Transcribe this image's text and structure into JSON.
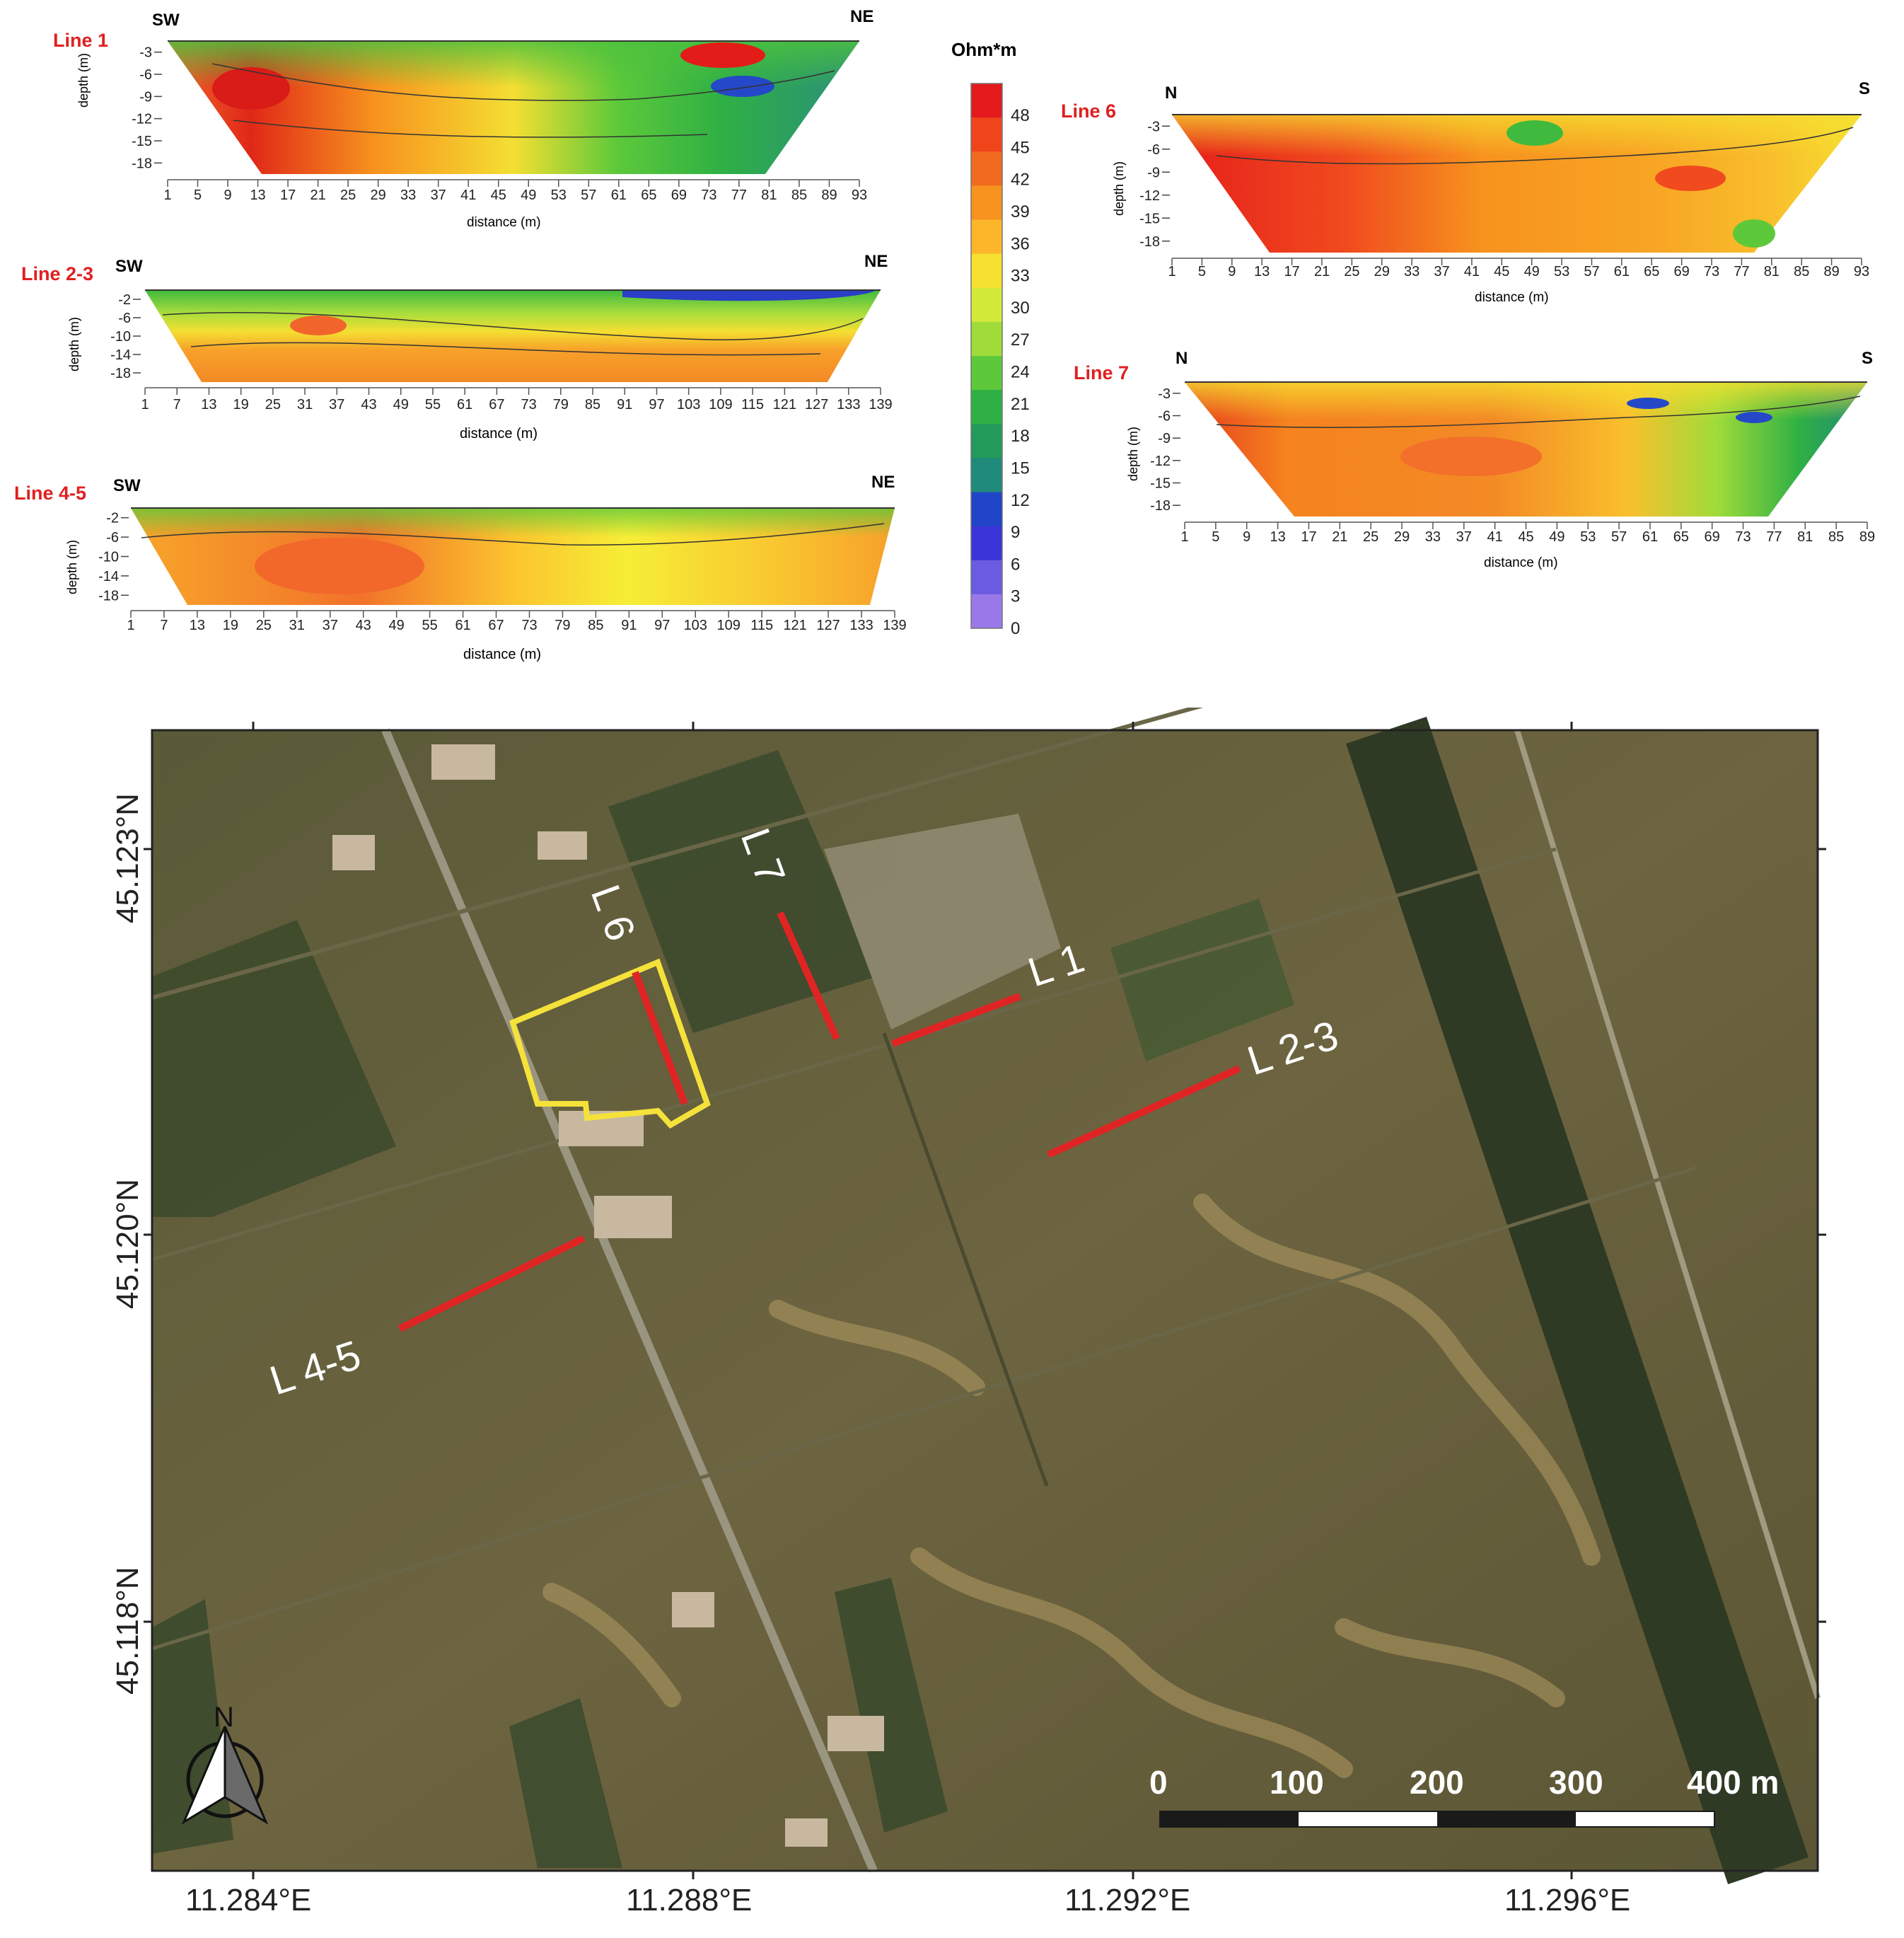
{
  "colorbar": {
    "unit_label": "Ohm*m",
    "ticks": [
      "48",
      "45",
      "42",
      "39",
      "36",
      "33",
      "30",
      "27",
      "24",
      "21",
      "18",
      "15",
      "12",
      "9",
      "6",
      "3",
      "0"
    ],
    "colors": [
      "#e41a1c",
      "#f0441a",
      "#f26a1f",
      "#f7931e",
      "#fdb62a",
      "#f6e030",
      "#d4ea3a",
      "#9fdc3a",
      "#5dc93a",
      "#2fb044",
      "#229a5a",
      "#1f8a7a",
      "#2045c8",
      "#3a35d8",
      "#6b5be0",
      "#9a78ea"
    ]
  },
  "profiles": [
    {
      "id": "line1",
      "title": "Line 1",
      "left_dir": "SW",
      "right_dir": "NE",
      "ylabel": "depth (m)",
      "xlabel": "distance (m)",
      "yticks": [
        "-3",
        "-6",
        "-9",
        "-12",
        "-15",
        "-18"
      ],
      "xticks": [
        "1",
        "5",
        "9",
        "13",
        "17",
        "21",
        "25",
        "29",
        "33",
        "37",
        "41",
        "45",
        "49",
        "53",
        "57",
        "61",
        "65",
        "69",
        "73",
        "77",
        "81",
        "85",
        "89",
        "93"
      ]
    },
    {
      "id": "line23",
      "title": "Line 2-3",
      "left_dir": "SW",
      "right_dir": "NE",
      "ylabel": "depth (m)",
      "xlabel": "distance (m)",
      "yticks": [
        "-2",
        "-6",
        "-10",
        "-14",
        "-18"
      ],
      "xticks": [
        "1",
        "7",
        "13",
        "19",
        "25",
        "31",
        "37",
        "43",
        "49",
        "55",
        "61",
        "67",
        "73",
        "79",
        "85",
        "91",
        "97",
        "103",
        "109",
        "115",
        "121",
        "127",
        "133",
        "139"
      ]
    },
    {
      "id": "line45",
      "title": "Line 4-5",
      "left_dir": "SW",
      "right_dir": "NE",
      "ylabel": "depth (m)",
      "xlabel": "distance (m)",
      "yticks": [
        "-2",
        "-6",
        "-10",
        "-14",
        "-18"
      ],
      "xticks": [
        "1",
        "7",
        "13",
        "19",
        "25",
        "31",
        "37",
        "43",
        "49",
        "55",
        "61",
        "67",
        "73",
        "79",
        "85",
        "91",
        "97",
        "103",
        "109",
        "115",
        "121",
        "127",
        "133",
        "139"
      ]
    },
    {
      "id": "line6",
      "title": "Line 6",
      "left_dir": "N",
      "right_dir": "S",
      "ylabel": "depth (m)",
      "xlabel": "distance (m)",
      "yticks": [
        "-3",
        "-6",
        "-9",
        "-12",
        "-15",
        "-18"
      ],
      "xticks": [
        "1",
        "5",
        "9",
        "13",
        "17",
        "21",
        "25",
        "29",
        "33",
        "37",
        "41",
        "45",
        "49",
        "53",
        "57",
        "61",
        "65",
        "69",
        "73",
        "77",
        "81",
        "85",
        "89",
        "93"
      ]
    },
    {
      "id": "line7",
      "title": "Line 7",
      "left_dir": "N",
      "right_dir": "S",
      "ylabel": "depth (m)",
      "xlabel": "distance (m)",
      "yticks": [
        "-3",
        "-6",
        "-9",
        "-12",
        "-15",
        "-18"
      ],
      "xticks": [
        "1",
        "5",
        "9",
        "13",
        "17",
        "21",
        "25",
        "29",
        "33",
        "37",
        "41",
        "45",
        "49",
        "53",
        "57",
        "61",
        "65",
        "69",
        "73",
        "77",
        "81",
        "85",
        "89"
      ]
    }
  ],
  "map": {
    "lon_labels": [
      "11.284°E",
      "11.288°E",
      "11.292°E",
      "11.296°E"
    ],
    "lat_labels": [
      "45.123°N",
      "45.120°N",
      "45.118°N"
    ],
    "line_labels": [
      "L 1",
      "L 2-3",
      "L 4-5",
      "L 6",
      "L 7"
    ],
    "scale": {
      "labels": [
        "0",
        "100",
        "200",
        "300",
        "400 m"
      ]
    },
    "north_label": "N",
    "colors": {
      "survey_line": "#e02424",
      "site_outline": "#f4e23a"
    }
  }
}
